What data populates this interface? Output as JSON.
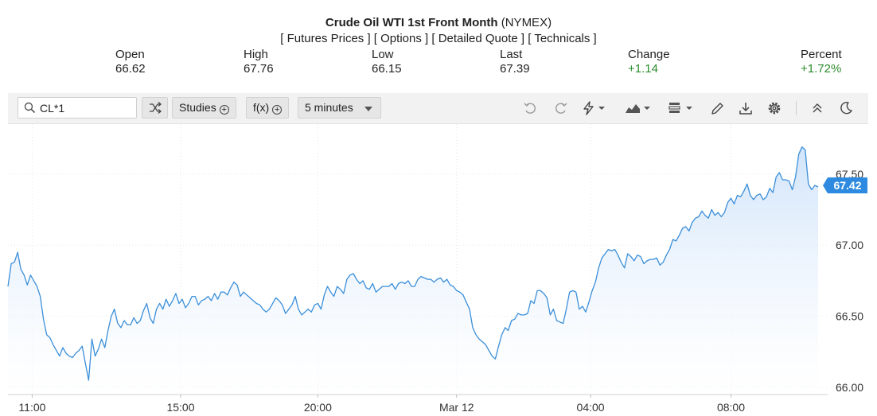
{
  "header": {
    "title_bold": "Crude Oil WTI 1st Front Month",
    "title_exchange": "(NYMEX)",
    "links": [
      "Futures Prices",
      "Options",
      "Detailed Quote",
      "Technicals"
    ]
  },
  "stats": {
    "open": {
      "label": "Open",
      "value": "66.62"
    },
    "high": {
      "label": "High",
      "value": "67.76"
    },
    "low": {
      "label": "Low",
      "value": "66.15"
    },
    "last": {
      "label": "Last",
      "value": "67.39"
    },
    "change": {
      "label": "Change",
      "value": "+1.14"
    },
    "percent": {
      "label": "Percent",
      "value": "+1.72%"
    }
  },
  "toolbar": {
    "symbol": "CL*1",
    "studies_label": "Studies",
    "fx_label": "f(x)",
    "interval_label": "5 minutes",
    "icons": [
      "search-icon",
      "compare-icon",
      "undo-icon",
      "redo-icon",
      "flash-icon",
      "chart-type-icon",
      "template-icon",
      "draw-icon",
      "download-icon",
      "settings-icon",
      "collapse-icon",
      "theme-icon"
    ]
  },
  "colors": {
    "line": "#3b8fd9",
    "fill_top": "#d6e8fb",
    "current_badge": "#2d8ae0",
    "positive": "#2e8b2e"
  },
  "chart_data": {
    "type": "area",
    "title": "",
    "xlabel": "",
    "ylabel": "",
    "ylim": [
      65.95,
      67.84
    ],
    "yticks": [
      "67.50",
      "67.00",
      "66.50",
      "66.00"
    ],
    "xticks": [
      "11:00",
      "15:00",
      "20:00",
      "Mar 12",
      "04:00",
      "08:00"
    ],
    "current_value": "67.42",
    "grid": true,
    "series": [
      {
        "values": [
          66.71,
          66.87,
          66.88,
          66.95,
          66.83,
          66.79,
          66.72,
          66.79,
          66.75,
          66.71,
          66.64,
          66.48,
          66.37,
          66.35,
          66.3,
          66.26,
          66.22,
          66.28,
          66.24,
          66.22,
          66.21,
          66.24,
          66.26,
          66.29,
          66.17,
          66.05,
          66.34,
          66.22,
          66.27,
          66.34,
          66.28,
          66.4,
          66.5,
          66.55,
          66.45,
          66.42,
          66.47,
          66.44,
          66.44,
          66.49,
          66.45,
          66.47,
          66.54,
          66.59,
          66.49,
          66.45,
          66.55,
          66.59,
          66.55,
          66.62,
          66.57,
          66.61,
          66.66,
          66.59,
          66.62,
          66.56,
          66.59,
          66.64,
          66.64,
          66.58,
          66.61,
          66.62,
          66.64,
          66.61,
          66.66,
          66.62,
          66.67,
          66.67,
          66.65,
          66.7,
          66.74,
          66.72,
          66.64,
          66.67,
          66.65,
          66.63,
          66.61,
          66.59,
          66.58,
          66.55,
          66.53,
          66.55,
          66.59,
          66.63,
          66.61,
          66.58,
          66.52,
          66.55,
          66.58,
          66.64,
          66.55,
          66.51,
          66.53,
          66.55,
          66.53,
          66.58,
          66.59,
          66.55,
          66.65,
          66.71,
          66.67,
          66.64,
          66.71,
          66.69,
          66.66,
          66.76,
          66.79,
          66.8,
          66.76,
          66.73,
          66.75,
          66.7,
          66.69,
          66.73,
          66.67,
          66.69,
          66.71,
          66.71,
          66.71,
          66.73,
          66.69,
          66.73,
          66.74,
          66.73,
          66.75,
          66.71,
          66.71,
          66.76,
          66.78,
          66.77,
          66.76,
          66.76,
          66.74,
          66.76,
          66.77,
          66.74,
          66.76,
          66.72,
          66.71,
          66.68,
          66.67,
          66.65,
          66.6,
          66.55,
          66.42,
          66.37,
          66.34,
          66.32,
          66.3,
          66.26,
          66.22,
          66.2,
          66.29,
          66.37,
          66.42,
          66.4,
          66.47,
          66.48,
          66.52,
          66.51,
          66.51,
          66.52,
          66.61,
          66.59,
          66.68,
          66.68,
          66.66,
          66.63,
          66.51,
          66.55,
          66.47,
          66.46,
          66.45,
          66.55,
          66.67,
          66.68,
          66.67,
          66.55,
          66.57,
          66.53,
          66.6,
          66.68,
          66.74,
          66.84,
          66.91,
          66.94,
          66.97,
          66.96,
          66.97,
          66.93,
          66.88,
          66.84,
          66.94,
          66.92,
          66.89,
          66.93,
          66.92,
          66.87,
          66.89,
          66.9,
          66.9,
          66.91,
          66.86,
          66.88,
          66.93,
          66.97,
          67.04,
          67.03,
          67.07,
          67.12,
          67.13,
          67.1,
          67.16,
          67.19,
          67.2,
          67.24,
          67.21,
          67.19,
          67.25,
          67.21,
          67.23,
          67.2,
          67.23,
          67.3,
          67.33,
          67.29,
          67.35,
          67.34,
          67.38,
          67.43,
          67.35,
          67.32,
          67.35,
          67.36,
          67.32,
          67.34,
          67.4,
          67.37,
          67.48,
          67.51,
          67.46,
          67.46,
          67.45,
          67.39,
          67.48,
          67.64,
          67.69,
          67.67,
          67.43,
          67.39,
          67.42,
          67.41
        ]
      }
    ]
  }
}
